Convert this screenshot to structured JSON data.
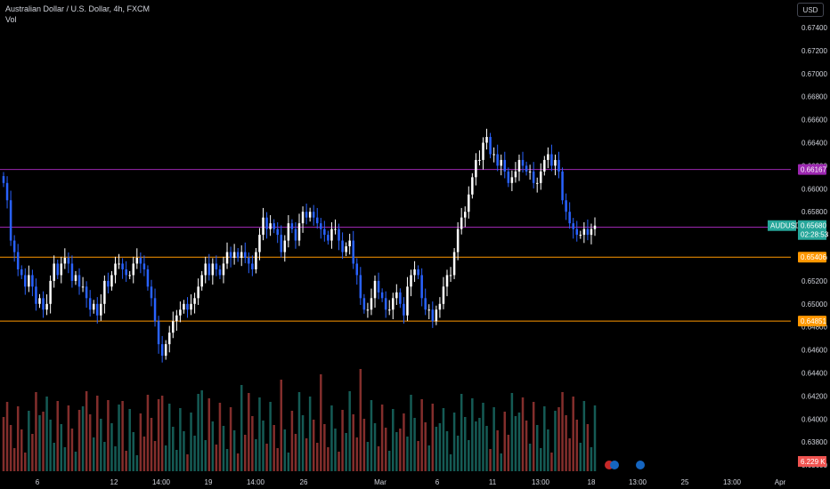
{
  "header": {
    "title": "Australian Dollar / U.S. Dollar, 4h, FXCM",
    "volume_label": "Vol",
    "currency": "USD"
  },
  "price_axis": {
    "ticks": [
      "0.67400",
      "0.67200",
      "0.67000",
      "0.66800",
      "0.66600",
      "0.66400",
      "0.66200",
      "0.66000",
      "0.65800",
      "0.65600",
      "0.65400",
      "0.65200",
      "0.65000",
      "0.64800",
      "0.64600",
      "0.64400",
      "0.64200",
      "0.64000",
      "0.63800",
      "0.63600"
    ]
  },
  "time_axis": {
    "labels": [
      "6",
      "12",
      "14:00",
      "19",
      "14:00",
      "26",
      "Mar",
      "6",
      "11",
      "13:00",
      "18",
      "13:00",
      "25",
      "13:00",
      "Apr"
    ]
  },
  "levels": [
    {
      "name": "resistance",
      "price": 0.66167,
      "label": "0.66167",
      "color": "#9c27b0",
      "badge": "#9c27b0"
    },
    {
      "name": "midline",
      "price": 0.65666,
      "label": "0.65666",
      "color": "#9c27b0",
      "badge": "#9c27b0"
    },
    {
      "name": "support",
      "price": 0.65406,
      "label": "0.65406",
      "color": "#ff9800",
      "badge": "#ff9800"
    },
    {
      "name": "low-support",
      "price": 0.64851,
      "label": "0.64851",
      "color": "#ff9800",
      "badge": "#ff9800"
    }
  ],
  "current_price": {
    "symbol": "AUDUSD",
    "price": "0.65680",
    "countdown": "02:28:53",
    "color": "#26a69a"
  },
  "volume_badge": {
    "label": "6.229 K",
    "color": "#ef5350"
  },
  "colors": {
    "up": "#ffffff",
    "down": "#2962ff",
    "vol_up": "#26a69a",
    "vol_down": "#ef5350"
  },
  "chart_data": {
    "type": "candlestick",
    "title": "Australian Dollar / U.S. Dollar, 4h, FXCM",
    "ylim": [
      0.636,
      0.675
    ],
    "closes": [
      0.6605,
      0.659,
      0.6555,
      0.6545,
      0.653,
      0.6525,
      0.6515,
      0.6525,
      0.6515,
      0.65,
      0.6505,
      0.6495,
      0.65,
      0.652,
      0.6535,
      0.6525,
      0.6535,
      0.654,
      0.6535,
      0.652,
      0.6525,
      0.6515,
      0.6515,
      0.6505,
      0.6495,
      0.65,
      0.649,
      0.65,
      0.652,
      0.6515,
      0.6525,
      0.6535,
      0.6535,
      0.653,
      0.6525,
      0.6525,
      0.6535,
      0.654,
      0.6535,
      0.653,
      0.6515,
      0.6505,
      0.6485,
      0.6465,
      0.6455,
      0.6465,
      0.6475,
      0.6485,
      0.649,
      0.6495,
      0.65,
      0.6495,
      0.65,
      0.6505,
      0.6515,
      0.6525,
      0.6535,
      0.6525,
      0.6535,
      0.653,
      0.6525,
      0.6535,
      0.6545,
      0.654,
      0.6545,
      0.654,
      0.6545,
      0.654,
      0.6535,
      0.653,
      0.6545,
      0.656,
      0.6575,
      0.6565,
      0.657,
      0.6565,
      0.656,
      0.6545,
      0.6555,
      0.657,
      0.6565,
      0.6555,
      0.657,
      0.658,
      0.6575,
      0.658,
      0.6575,
      0.657,
      0.6565,
      0.656,
      0.6555,
      0.6565,
      0.6565,
      0.6555,
      0.6545,
      0.655,
      0.6555,
      0.6535,
      0.6525,
      0.6505,
      0.6495,
      0.6495,
      0.6505,
      0.652,
      0.651,
      0.6505,
      0.6495,
      0.6495,
      0.6505,
      0.651,
      0.65,
      0.649,
      0.6515,
      0.6525,
      0.653,
      0.6525,
      0.6505,
      0.6495,
      0.6495,
      0.6485,
      0.6495,
      0.65,
      0.6515,
      0.6525,
      0.6525,
      0.6545,
      0.6565,
      0.6575,
      0.658,
      0.6595,
      0.661,
      0.6625,
      0.6625,
      0.664,
      0.6645,
      0.663,
      0.663,
      0.662,
      0.6625,
      0.6615,
      0.6605,
      0.661,
      0.6615,
      0.6625,
      0.662,
      0.6615,
      0.6615,
      0.6605,
      0.6605,
      0.6615,
      0.6625,
      0.663,
      0.662,
      0.6625,
      0.6615,
      0.659,
      0.658,
      0.657,
      0.6565,
      0.656,
      0.656,
      0.6565,
      0.656,
      0.6565,
      0.6568
    ]
  }
}
